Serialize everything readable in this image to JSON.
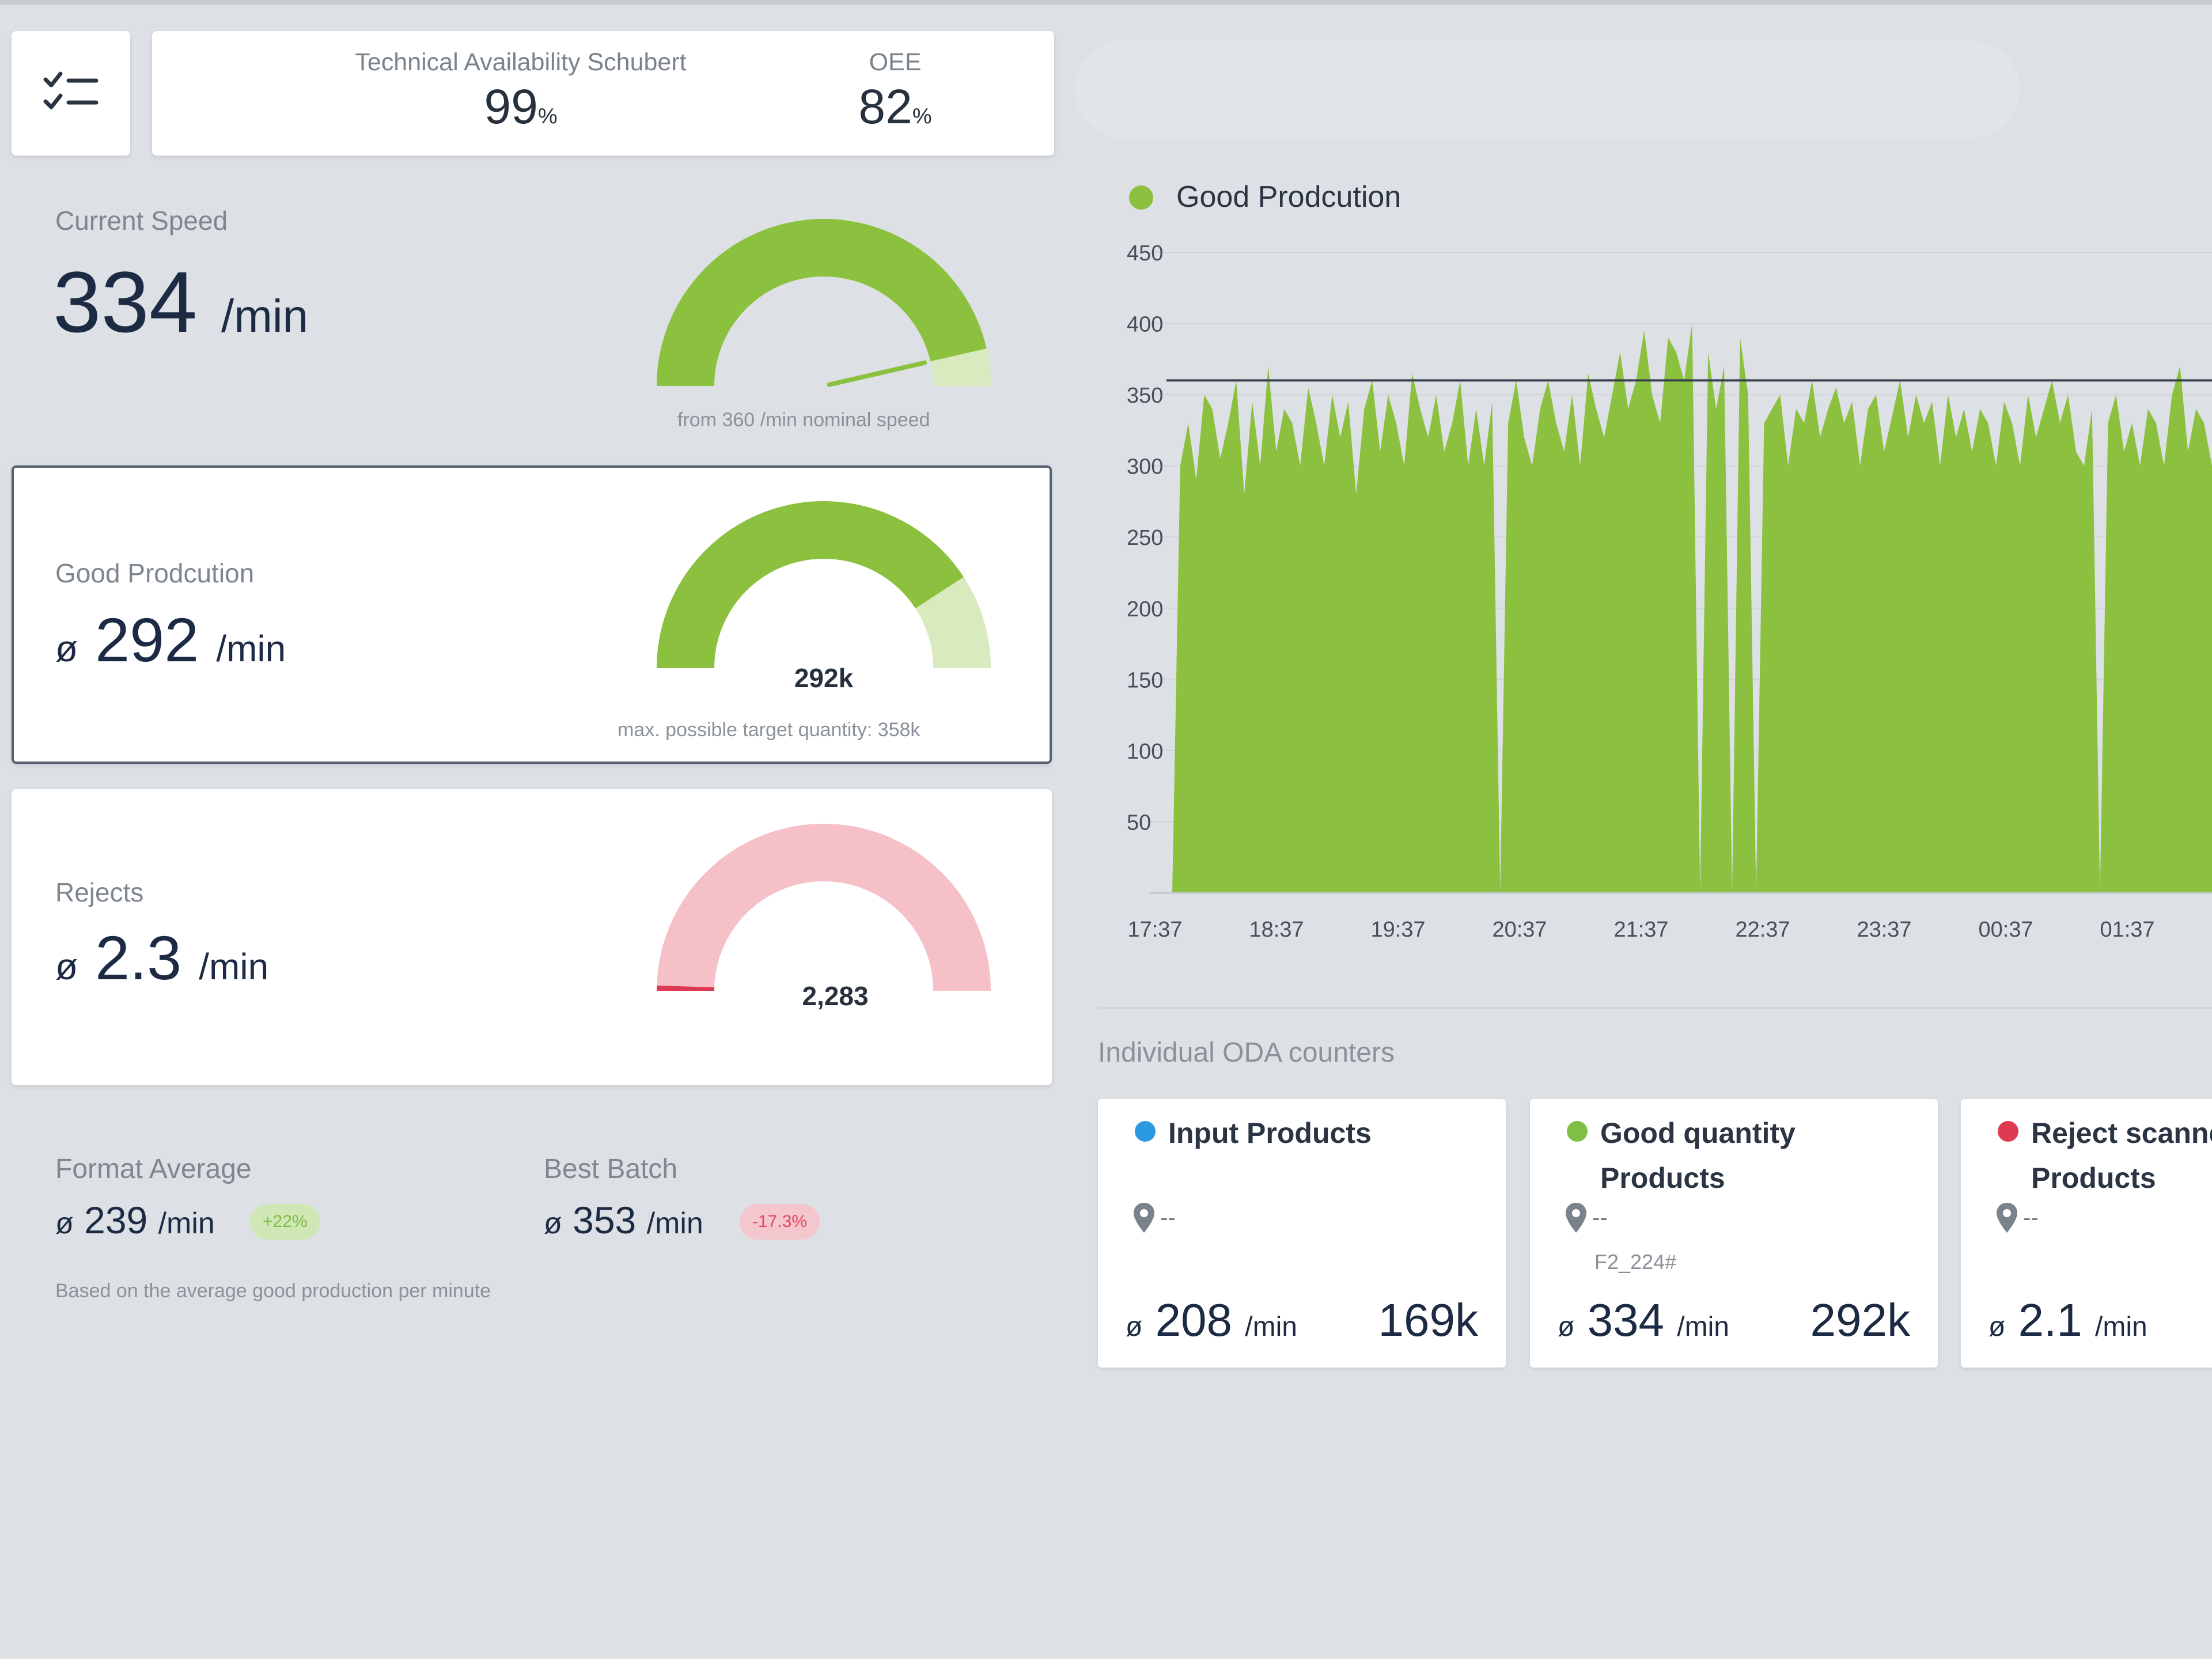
{
  "header": {
    "menu_icon": "checklist-icon",
    "technical_availability": {
      "label": "Technical Availability Schubert",
      "value": "99",
      "unit": "%"
    },
    "oee": {
      "label": "OEE",
      "value": "82",
      "unit": "%"
    }
  },
  "current_speed": {
    "label": "Current Speed",
    "value": "334",
    "unit": "/min",
    "nominal_note": "from 360 /min nominal speed",
    "gauge_fraction": 0.928
  },
  "good_production": {
    "label": "Good Prodcution",
    "prefix": "ø",
    "value": "292",
    "unit": "/min",
    "gauge_value": "292k",
    "target_note": "max. possible target quantity: 358k",
    "gauge_fraction": 0.816
  },
  "rejects": {
    "label": "Rejects",
    "prefix": "ø",
    "value": "2.3",
    "unit": "/min",
    "gauge_value": "2,283",
    "gauge_fraction": 0.01
  },
  "format_average": {
    "label": "Format Average",
    "prefix": "ø",
    "value": "239",
    "unit": "/min",
    "badge": "+22%",
    "note": "Based on the average good production per minute"
  },
  "best_batch": {
    "label": "Best Batch",
    "prefix": "ø",
    "value": "353",
    "unit": "/min",
    "badge": "-17.3%"
  },
  "colors": {
    "good": "#8cc03f",
    "good_light": "#d9eabf",
    "reject": "#f5c0c8",
    "reject_strong": "#e03a52",
    "input": "#2a9be0",
    "badge_green_bg": "#cfe6b5",
    "badge_green_text": "#7fbf45",
    "badge_red_bg": "#f3c7cd",
    "badge_red_text": "#e34a5c"
  },
  "chart_data": {
    "type": "area",
    "legend": [
      {
        "name": "Good Prodcution",
        "color": "#8cc03f"
      }
    ],
    "x_ticks": [
      "17:37",
      "18:37",
      "19:37",
      "20:37",
      "21:37",
      "22:37",
      "23:37",
      "00:37",
      "01:37"
    ],
    "y_ticks": [
      50,
      100,
      150,
      200,
      250,
      300,
      350,
      400,
      450
    ],
    "ylim": [
      0,
      450
    ],
    "reference_line": 360,
    "series": [
      {
        "name": "Good Prodcution",
        "values": [
          0,
          300,
          330,
          290,
          350,
          340,
          305,
          330,
          360,
          280,
          345,
          300,
          370,
          310,
          340,
          330,
          300,
          355,
          330,
          300,
          350,
          320,
          345,
          280,
          340,
          360,
          310,
          350,
          330,
          300,
          365,
          340,
          320,
          350,
          310,
          330,
          360,
          300,
          340,
          300,
          345,
          0,
          330,
          360,
          320,
          300,
          340,
          360,
          330,
          310,
          350,
          300,
          365,
          340,
          320,
          350,
          380,
          340,
          360,
          395,
          350,
          330,
          390,
          380,
          360,
          400,
          0,
          380,
          340,
          370,
          0,
          390,
          350,
          0,
          330,
          340,
          350,
          300,
          340,
          330,
          360,
          320,
          340,
          355,
          330,
          345,
          300,
          340,
          350,
          310,
          335,
          360,
          320,
          350,
          330,
          345,
          300,
          350,
          320,
          340,
          310,
          340,
          330,
          300,
          345,
          330,
          300,
          350,
          320,
          340,
          360,
          330,
          350,
          310,
          300,
          340,
          0,
          330,
          350,
          310,
          330,
          300,
          340,
          330,
          300,
          350,
          370,
          310,
          340,
          330,
          300
        ]
      }
    ]
  },
  "oda": {
    "section_label": "Individual ODA counters",
    "cards": [
      {
        "title_line1": "Input Products",
        "title_line2": "",
        "location": "--",
        "code": "",
        "prefix": "ø",
        "rate": "208",
        "unit": "/min",
        "total": "169k",
        "dot_color": "#2a9be0"
      },
      {
        "title_line1": "Good quantity",
        "title_line2": "Products",
        "location": "--",
        "code": "F2_224#",
        "prefix": "ø",
        "rate": "334",
        "unit": "/min",
        "total": "292k",
        "dot_color": "#7fbf45"
      },
      {
        "title_line1": "Reject scanned",
        "title_line2": "Products",
        "location": "--",
        "code": "",
        "prefix": "ø",
        "rate": "2.1",
        "unit": "/min",
        "total": "",
        "dot_color": "#e03a52"
      }
    ]
  }
}
